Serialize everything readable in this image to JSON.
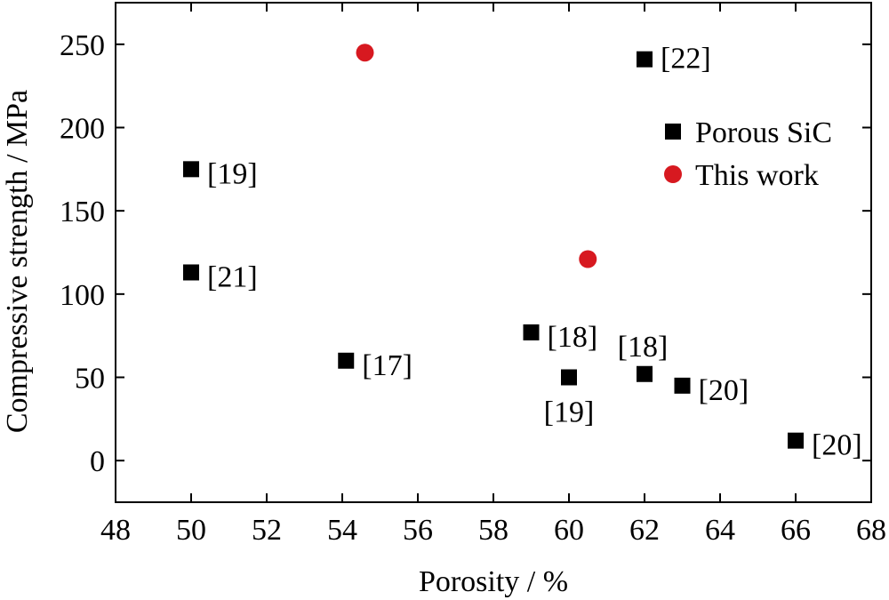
{
  "chart_data": {
    "type": "scatter",
    "title": "",
    "xlabel": "Porosity / %",
    "ylabel": "Compressive strength / MPa",
    "xlim": [
      48,
      68
    ],
    "ylim": [
      -25,
      275
    ],
    "xticks": [
      48,
      50,
      52,
      54,
      56,
      58,
      60,
      62,
      64,
      66,
      68
    ],
    "yticks": [
      0,
      50,
      100,
      150,
      200,
      250
    ],
    "grid": false,
    "legend_position": "right",
    "series": [
      {
        "name": "Porous SiC",
        "marker": "square",
        "color": "#000000",
        "points": [
          {
            "x": 50,
            "y": 175,
            "label": "[19]"
          },
          {
            "x": 50,
            "y": 113,
            "label": "[21]"
          },
          {
            "x": 54.1,
            "y": 60,
            "label": "[17]"
          },
          {
            "x": 59,
            "y": 77,
            "label": "[18]"
          },
          {
            "x": 60,
            "y": 50,
            "label": "[19]"
          },
          {
            "x": 62,
            "y": 52,
            "label": "[18]"
          },
          {
            "x": 62,
            "y": 241,
            "label": "[22]"
          },
          {
            "x": 63,
            "y": 45,
            "label": "[20]"
          },
          {
            "x": 66,
            "y": 12,
            "label": "[20]"
          }
        ]
      },
      {
        "name": "This work",
        "marker": "circle",
        "color": "#d71920",
        "points": [
          {
            "x": 54.6,
            "y": 245
          },
          {
            "x": 60.5,
            "y": 121
          }
        ]
      }
    ]
  }
}
